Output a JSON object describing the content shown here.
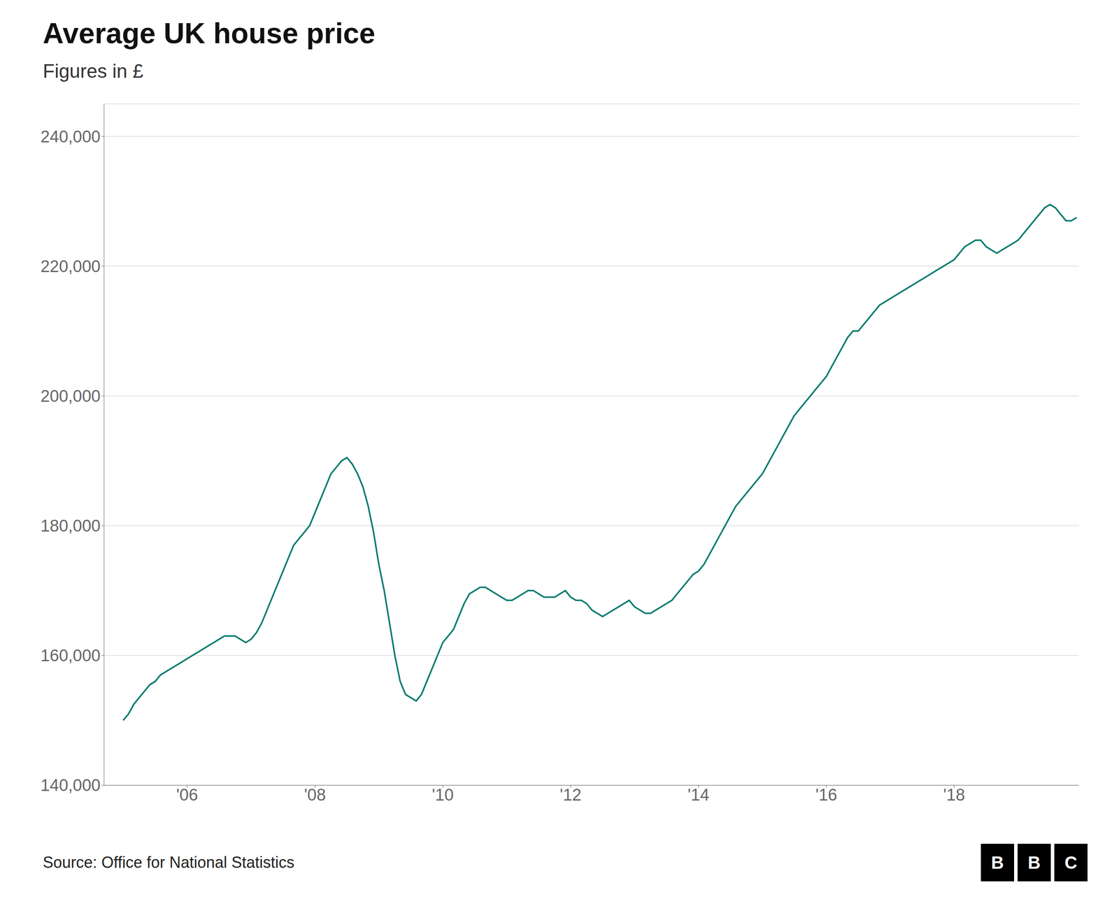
{
  "chart_data": {
    "type": "line",
    "title": "Average UK house price",
    "subtitle": "Figures in £",
    "source": "Source: Office for National Statistics",
    "logo": [
      "B",
      "B",
      "C"
    ],
    "color": "#007a6e",
    "grid": "y",
    "xlim": [
      2004.7,
      2019.95
    ],
    "xticks": [
      {
        "value": 2006,
        "label": "'06"
      },
      {
        "value": 2008,
        "label": "'08"
      },
      {
        "value": 2010,
        "label": "'10"
      },
      {
        "value": 2012,
        "label": "'12"
      },
      {
        "value": 2014,
        "label": "'14"
      },
      {
        "value": 2016,
        "label": "'16"
      },
      {
        "value": 2018,
        "label": "'18"
      }
    ],
    "ylim": [
      140000,
      245000
    ],
    "yticks": [
      {
        "value": 140000,
        "label": "140,000"
      },
      {
        "value": 160000,
        "label": "160,000"
      },
      {
        "value": 180000,
        "label": "180,000"
      },
      {
        "value": 200000,
        "label": "200,000"
      },
      {
        "value": 220000,
        "label": "220,000"
      },
      {
        "value": 240000,
        "label": "240,000"
      }
    ],
    "x": [
      2005,
      2005.0833333333,
      2005.1666666667,
      2005.25,
      2005.3333333333,
      2005.4166666667,
      2005.5,
      2005.5833333333,
      2005.6666666667,
      2005.75,
      2005.8333333333,
      2005.9166666667,
      2006,
      2006.0833333333,
      2006.1666666667,
      2006.25,
      2006.3333333333,
      2006.4166666667,
      2006.5,
      2006.5833333333,
      2006.6666666667,
      2006.75,
      2006.8333333333,
      2006.9166666667,
      2007,
      2007.0833333333,
      2007.1666666667,
      2007.25,
      2007.3333333333,
      2007.4166666667,
      2007.5,
      2007.5833333333,
      2007.6666666667,
      2007.75,
      2007.8333333333,
      2007.9166666667,
      2008,
      2008.0833333333,
      2008.1666666667,
      2008.25,
      2008.3333333333,
      2008.4166666667,
      2008.5,
      2008.5833333333,
      2008.6666666667,
      2008.75,
      2008.8333333333,
      2008.9166666667,
      2009,
      2009.0833333333,
      2009.1666666667,
      2009.25,
      2009.3333333333,
      2009.4166666667,
      2009.5,
      2009.5833333333,
      2009.6666666667,
      2009.75,
      2009.8333333333,
      2009.9166666667,
      2010,
      2010.0833333333,
      2010.1666666667,
      2010.25,
      2010.3333333333,
      2010.4166666667,
      2010.5,
      2010.5833333333,
      2010.6666666667,
      2010.75,
      2010.8333333333,
      2010.9166666667,
      2011,
      2011.0833333333,
      2011.1666666667,
      2011.25,
      2011.3333333333,
      2011.4166666667,
      2011.5,
      2011.5833333333,
      2011.6666666667,
      2011.75,
      2011.8333333333,
      2011.9166666667,
      2012,
      2012.0833333333,
      2012.1666666667,
      2012.25,
      2012.3333333333,
      2012.4166666667,
      2012.5,
      2012.5833333333,
      2012.6666666667,
      2012.75,
      2012.8333333333,
      2012.9166666667,
      2013,
      2013.0833333333,
      2013.1666666667,
      2013.25,
      2013.3333333333,
      2013.4166666667,
      2013.5,
      2013.5833333333,
      2013.6666666667,
      2013.75,
      2013.8333333333,
      2013.9166666667,
      2014,
      2014.0833333333,
      2014.1666666667,
      2014.25,
      2014.3333333333,
      2014.4166666667,
      2014.5,
      2014.5833333333,
      2014.6666666667,
      2014.75,
      2014.8333333333,
      2014.9166666667,
      2015,
      2015.0833333333,
      2015.1666666667,
      2015.25,
      2015.3333333333,
      2015.4166666667,
      2015.5,
      2015.5833333333,
      2015.6666666667,
      2015.75,
      2015.8333333333,
      2015.9166666667,
      2016,
      2016.0833333333,
      2016.1666666667,
      2016.25,
      2016.3333333333,
      2016.4166666667,
      2016.5,
      2016.5833333333,
      2016.6666666667,
      2016.75,
      2016.8333333333,
      2016.9166666667,
      2017,
      2017.0833333333,
      2017.1666666667,
      2017.25,
      2017.3333333333,
      2017.4166666667,
      2017.5,
      2017.5833333333,
      2017.6666666667,
      2017.75,
      2017.8333333333,
      2017.9166666667,
      2018,
      2018.0833333333,
      2018.1666666667,
      2018.25,
      2018.3333333333,
      2018.4166666667,
      2018.5,
      2018.5833333333,
      2018.6666666667,
      2018.75,
      2018.8333333333,
      2018.9166666667,
      2019,
      2019.0833333333,
      2019.1666666667,
      2019.25,
      2019.3333333333,
      2019.4166666667,
      2019.5,
      2019.5833333333,
      2019.6666666667,
      2019.75,
      2019.8333333333,
      2019.9166666667
    ],
    "values": [
      150000,
      151000,
      152500,
      153500,
      154500,
      155500,
      156000,
      157000,
      157500,
      158000,
      158500,
      159000,
      159500,
      160000,
      160500,
      161000,
      161500,
      162000,
      162500,
      163000,
      163000,
      163000,
      162500,
      162000,
      162500,
      163500,
      165000,
      167000,
      169000,
      171000,
      173000,
      175000,
      177000,
      178000,
      179000,
      180000,
      182000,
      184000,
      186000,
      188000,
      189000,
      190000,
      190500,
      189500,
      188000,
      186000,
      183000,
      179000,
      174000,
      170000,
      165000,
      160000,
      156000,
      154000,
      153500,
      153000,
      154000,
      156000,
      158000,
      160000,
      162000,
      163000,
      164000,
      166000,
      168000,
      169500,
      170000,
      170500,
      170500,
      170000,
      169500,
      169000,
      168500,
      168500,
      169000,
      169500,
      170000,
      170000,
      169500,
      169000,
      169000,
      169000,
      169500,
      170000,
      169000,
      168500,
      168500,
      168000,
      167000,
      166500,
      166000,
      166500,
      167000,
      167500,
      168000,
      168500,
      167500,
      167000,
      166500,
      166500,
      167000,
      167500,
      168000,
      168500,
      169500,
      170500,
      171500,
      172500,
      173000,
      174000,
      175500,
      177000,
      178500,
      180000,
      181500,
      183000,
      184000,
      185000,
      186000,
      187000,
      188000,
      189500,
      191000,
      192500,
      194000,
      195500,
      197000,
      198000,
      199000,
      200000,
      201000,
      202000,
      203000,
      204500,
      206000,
      207500,
      209000,
      210000,
      210000,
      211000,
      212000,
      213000,
      214000,
      214500,
      215000,
      215500,
      216000,
      216500,
      217000,
      217500,
      218000,
      218500,
      219000,
      219500,
      220000,
      220500,
      221000,
      222000,
      223000,
      223500,
      224000,
      224000,
      223000,
      222500,
      222000,
      222500,
      223000,
      223500,
      224000,
      225000,
      226000,
      227000,
      228000,
      229000,
      229500,
      229000,
      228000,
      227000,
      227000,
      227500
    ]
  }
}
